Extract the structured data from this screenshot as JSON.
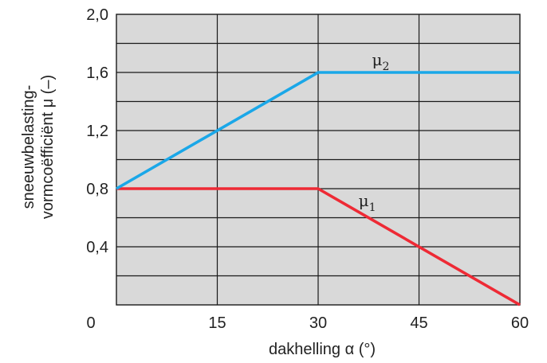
{
  "chart_data": {
    "type": "line",
    "xlabel": "dakhelling α (°)",
    "ylabel_lines": [
      "sneeuwbelasting-",
      "vormcoëfficiënt μ (–)"
    ],
    "x_ticks": [
      0,
      15,
      30,
      45,
      60
    ],
    "x_tick_labels": [
      "0",
      "15",
      "30",
      "45",
      "60"
    ],
    "y_tick_labels": [
      {
        "value": 0.4,
        "label": "0,4"
      },
      {
        "value": 0.8,
        "label": "0,8"
      },
      {
        "value": 1.2,
        "label": "1,2"
      },
      {
        "value": 1.6,
        "label": "1,6"
      },
      {
        "value": 2.0,
        "label": "2,0"
      }
    ],
    "xlim": [
      0,
      60
    ],
    "ylim": [
      0,
      2.0
    ],
    "grid": true,
    "grid_x_step": 15,
    "grid_y_step": 0.2,
    "background_color": "#d9d9d9",
    "series": [
      {
        "name": "μ1",
        "label_main": "μ",
        "label_sub": "1",
        "label_anchor": {
          "x": 36,
          "y": 0.68
        },
        "color": "#ee2a35",
        "x": [
          0,
          30,
          60
        ],
        "y": [
          0.8,
          0.8,
          0.0
        ]
      },
      {
        "name": "μ2",
        "label_main": "μ",
        "label_sub": "2",
        "label_anchor": {
          "x": 38,
          "y": 1.65
        },
        "color": "#1aa7e8",
        "x": [
          0,
          30,
          60
        ],
        "y": [
          0.8,
          1.6,
          1.6
        ]
      }
    ]
  }
}
